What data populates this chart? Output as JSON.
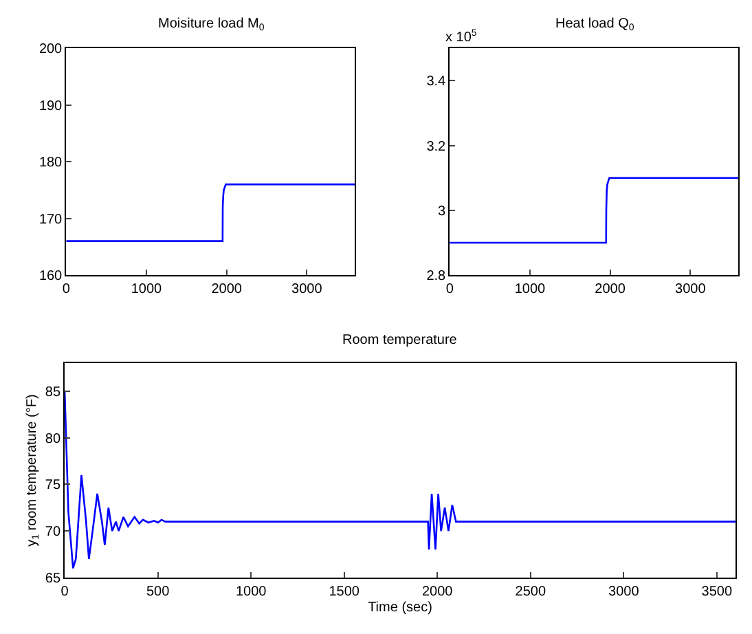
{
  "chart_data": [
    {
      "type": "line",
      "title": "Moisiture load M$_{0}$",
      "x": [
        0,
        1950,
        1952,
        1958,
        1965,
        1990,
        3600
      ],
      "xlim": [
        0,
        3600
      ],
      "xticks": [
        0,
        1000,
        2000,
        3000
      ],
      "ylim": [
        160,
        200
      ],
      "yticks": [
        160,
        170,
        180,
        190,
        200
      ],
      "series": [
        {
          "color": "#0000ff",
          "values": [
            166,
            166,
            172,
            174,
            175,
            176,
            176
          ]
        }
      ]
    },
    {
      "type": "line",
      "title": "Heat load Q$_{0}$",
      "annotations": [
        "x 10$^{5}$"
      ],
      "x": [
        0,
        1950,
        1952,
        1958,
        1965,
        1990,
        3600
      ],
      "xlim": [
        0,
        3600
      ],
      "xticks": [
        0,
        1000,
        2000,
        3000
      ],
      "ylim": [
        2.8,
        3.5
      ],
      "yticks": [
        2.8,
        3,
        3.2,
        3.4
      ],
      "series": [
        {
          "color": "#0000ff",
          "values": [
            2.9,
            2.9,
            3.0,
            3.06,
            3.08,
            3.1,
            3.1
          ]
        }
      ]
    },
    {
      "type": "line",
      "title": "Room temperature",
      "xlabel": "Time (sec)",
      "ylabel": "y$_{1}$ room temperature (°F)",
      "xlim": [
        0,
        3600
      ],
      "xticks": [
        0,
        500,
        1000,
        1500,
        2000,
        2500,
        3000,
        3500
      ],
      "ylim": [
        65,
        88
      ],
      "yticks": [
        65,
        70,
        75,
        80,
        85
      ],
      "x": [
        0,
        20,
        45,
        60,
        90,
        115,
        130,
        150,
        175,
        200,
        215,
        235,
        255,
        275,
        290,
        315,
        340,
        375,
        400,
        420,
        450,
        480,
        500,
        520,
        540,
        1950,
        1955,
        1970,
        1990,
        2005,
        2020,
        2040,
        2060,
        2080,
        2100,
        2110,
        3600
      ],
      "series": [
        {
          "color": "#0000ff",
          "values": [
            85,
            72,
            66,
            67,
            76,
            71,
            67,
            70,
            74,
            71,
            68.5,
            72.5,
            70,
            71,
            70,
            71.5,
            70.5,
            71.5,
            70.8,
            71.2,
            70.9,
            71.1,
            70.9,
            71.2,
            71,
            71,
            68,
            74,
            68,
            74,
            70,
            72.5,
            70,
            72.8,
            71,
            71,
            71
          ]
        }
      ]
    }
  ]
}
